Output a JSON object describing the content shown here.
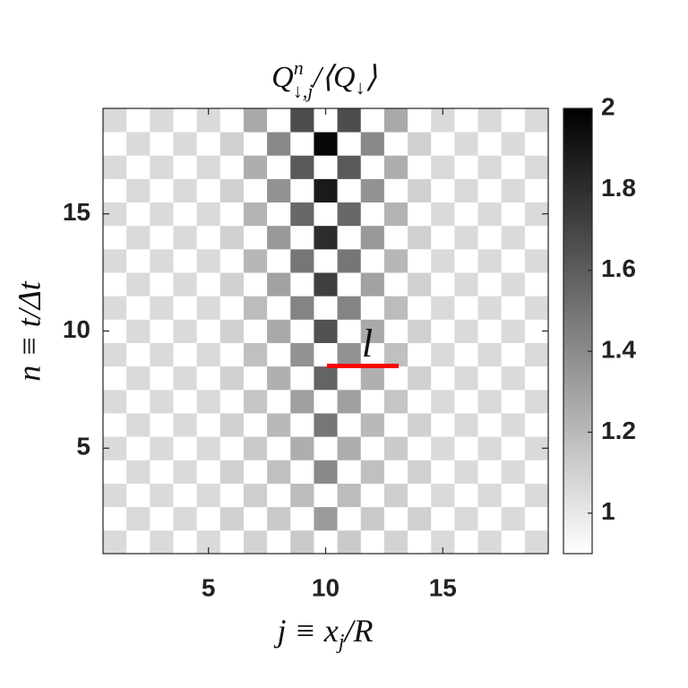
{
  "chart_data": {
    "type": "heatmap",
    "title": [
      "Q",
      "n",
      "↓,j",
      "/⟨Q",
      "↓",
      "⟩"
    ],
    "xlabel": [
      "j ≡ x",
      "j",
      "/R"
    ],
    "ylabel": "n ≡ t/Δt",
    "annotation": "l",
    "x": [
      1,
      2,
      3,
      4,
      5,
      6,
      7,
      8,
      9,
      10,
      11,
      12,
      13,
      14,
      15,
      16,
      17,
      18,
      19
    ],
    "y": [
      1,
      2,
      3,
      4,
      5,
      6,
      7,
      8,
      9,
      10,
      11,
      12,
      13,
      14,
      15,
      16,
      17,
      18,
      19
    ],
    "xlim": [
      0.5,
      19.5
    ],
    "ylim": [
      0.5,
      19.5
    ],
    "xticks": [
      5,
      10,
      15
    ],
    "yticks": [
      5,
      10,
      15
    ],
    "clim": [
      0.9,
      2
    ],
    "cticks": [
      1,
      1.2,
      1.4,
      1.6,
      1.8,
      2
    ],
    "z": [
      [
        1.06,
        0.9,
        1.06,
        0.9,
        1.06,
        0.9,
        1.09,
        0.9,
        1.13,
        0.9,
        1.13,
        0.9,
        1.09,
        0.9,
        1.06,
        0.9,
        1.06,
        0.9,
        1.06
      ],
      [
        0.9,
        1.06,
        0.9,
        1.06,
        0.9,
        1.1,
        0.9,
        1.13,
        0.9,
        1.33,
        0.9,
        1.13,
        0.9,
        1.1,
        0.9,
        1.06,
        0.9,
        1.06,
        0.9
      ],
      [
        1.06,
        0.9,
        1.06,
        0.9,
        1.06,
        0.9,
        1.11,
        0.9,
        1.19,
        0.9,
        1.19,
        0.9,
        1.11,
        0.9,
        1.06,
        0.9,
        1.06,
        0.9,
        1.06
      ],
      [
        0.9,
        1.06,
        0.9,
        1.06,
        0.9,
        1.1,
        0.9,
        1.17,
        0.9,
        1.41,
        0.9,
        1.17,
        0.9,
        1.1,
        0.9,
        1.06,
        0.9,
        1.06,
        0.9
      ],
      [
        1.06,
        0.9,
        1.06,
        0.9,
        1.06,
        0.9,
        1.13,
        0.9,
        1.25,
        0.9,
        1.25,
        0.9,
        1.13,
        0.9,
        1.06,
        0.9,
        1.06,
        0.9,
        1.06
      ],
      [
        0.9,
        1.06,
        0.9,
        1.06,
        0.9,
        1.1,
        0.9,
        1.2,
        0.9,
        1.49,
        0.9,
        1.2,
        0.9,
        1.1,
        0.9,
        1.06,
        0.9,
        1.06,
        0.9
      ],
      [
        1.06,
        0.9,
        1.06,
        0.9,
        1.06,
        0.9,
        1.15,
        0.9,
        1.31,
        0.9,
        1.31,
        0.9,
        1.15,
        0.9,
        1.06,
        0.9,
        1.06,
        0.9,
        1.06
      ],
      [
        0.9,
        1.06,
        0.9,
        1.06,
        0.9,
        1.1,
        0.9,
        1.24,
        0.9,
        1.57,
        0.9,
        1.24,
        0.9,
        1.1,
        0.9,
        1.06,
        0.9,
        1.06,
        0.9
      ],
      [
        1.06,
        0.9,
        1.06,
        0.9,
        1.06,
        0.9,
        1.17,
        0.9,
        1.37,
        0.9,
        1.37,
        0.9,
        1.17,
        0.9,
        1.06,
        0.9,
        1.06,
        0.9,
        1.06
      ],
      [
        0.9,
        1.06,
        0.9,
        1.06,
        0.9,
        1.1,
        0.9,
        1.27,
        0.9,
        1.65,
        0.9,
        1.27,
        0.9,
        1.1,
        0.9,
        1.06,
        0.9,
        1.06,
        0.9
      ],
      [
        1.06,
        0.9,
        1.06,
        0.9,
        1.06,
        0.9,
        1.19,
        0.9,
        1.43,
        0.9,
        1.43,
        0.9,
        1.19,
        0.9,
        1.06,
        0.9,
        1.06,
        0.9,
        1.06
      ],
      [
        0.9,
        1.06,
        0.9,
        1.06,
        0.9,
        1.1,
        0.9,
        1.3,
        0.9,
        1.73,
        0.9,
        1.3,
        0.9,
        1.1,
        0.9,
        1.06,
        0.9,
        1.06,
        0.9
      ],
      [
        1.06,
        0.9,
        1.06,
        0.9,
        1.06,
        0.9,
        1.21,
        0.9,
        1.49,
        0.9,
        1.49,
        0.9,
        1.21,
        0.9,
        1.06,
        0.9,
        1.06,
        0.9,
        1.06
      ],
      [
        0.9,
        1.06,
        0.9,
        1.06,
        0.9,
        1.1,
        0.9,
        1.34,
        0.9,
        1.81,
        0.9,
        1.34,
        0.9,
        1.1,
        0.9,
        1.06,
        0.9,
        1.06,
        0.9
      ],
      [
        1.06,
        0.9,
        1.06,
        0.9,
        1.06,
        0.9,
        1.23,
        0.9,
        1.55,
        0.9,
        1.55,
        0.9,
        1.23,
        0.9,
        1.06,
        0.9,
        1.06,
        0.9,
        1.06
      ],
      [
        0.9,
        1.06,
        0.9,
        1.06,
        0.9,
        1.1,
        0.9,
        1.37,
        0.9,
        1.89,
        0.9,
        1.37,
        0.9,
        1.1,
        0.9,
        1.06,
        0.9,
        1.06,
        0.9
      ],
      [
        1.06,
        0.9,
        1.06,
        0.9,
        1.06,
        0.9,
        1.25,
        0.9,
        1.61,
        0.9,
        1.61,
        0.9,
        1.25,
        0.9,
        1.06,
        0.9,
        1.06,
        0.9,
        1.06
      ],
      [
        0.9,
        1.06,
        0.9,
        1.06,
        0.9,
        1.1,
        0.9,
        1.41,
        0.9,
        1.97,
        0.9,
        1.41,
        0.9,
        1.1,
        0.9,
        1.06,
        0.9,
        1.06,
        0.9
      ],
      [
        1.06,
        0.9,
        1.06,
        0.9,
        1.06,
        0.9,
        1.27,
        0.9,
        1.67,
        0.9,
        1.67,
        0.9,
        1.27,
        0.9,
        1.06,
        0.9,
        1.06,
        0.9,
        1.06
      ]
    ],
    "annotation_color": "#ff0000"
  }
}
